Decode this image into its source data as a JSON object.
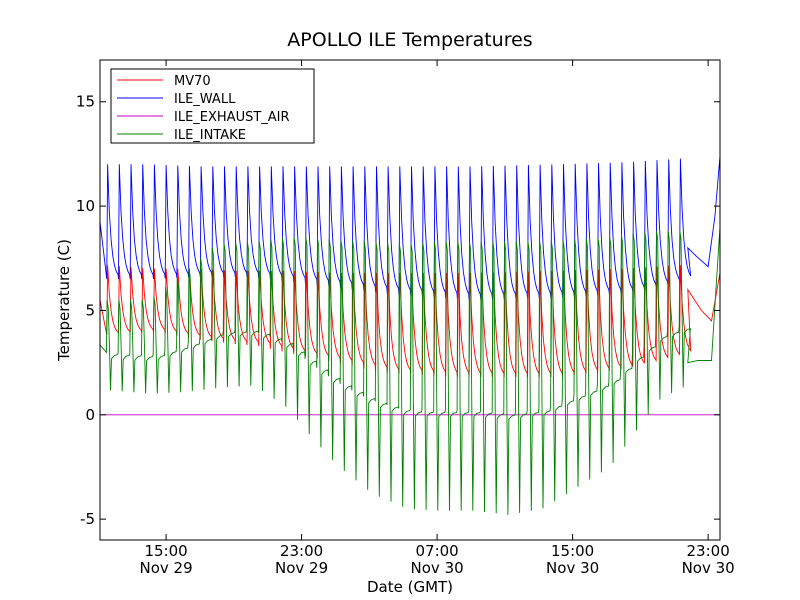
{
  "chart_data": {
    "type": "line",
    "title": "APOLLO ILE Temperatures",
    "xlabel": "Date (GMT)",
    "ylabel": "Temperature (C)",
    "ylim": [
      -6,
      17
    ],
    "xlim_hours": [
      11.1,
      47.7
    ],
    "grid": false,
    "legend_position": "top-left",
    "y_ticks": [
      {
        "value": -5,
        "label": "-5"
      },
      {
        "value": 0,
        "label": "0"
      },
      {
        "value": 5,
        "label": "5"
      },
      {
        "value": 10,
        "label": "10"
      },
      {
        "value": 15,
        "label": "15"
      }
    ],
    "x_ticks": [
      {
        "hours": 15,
        "time": "15:00",
        "date": "Nov 29"
      },
      {
        "hours": 23,
        "time": "23:00",
        "date": "Nov 29"
      },
      {
        "hours": 31,
        "time": "07:00",
        "date": "Nov 30"
      },
      {
        "hours": 39,
        "time": "15:00",
        "date": "Nov 30"
      },
      {
        "hours": 47,
        "time": "23:00",
        "date": "Nov 30"
      }
    ],
    "cycle": {
      "start_hour": 11.5,
      "period_hours": 0.69,
      "end_hour": 45.8
    },
    "series": [
      {
        "name": "MV70",
        "color": "#ff0000",
        "envelope": {
          "hours": [
            11.1,
            14.0,
            17.0,
            19.0,
            20.5,
            22.0,
            25.0,
            28.0,
            33.0,
            38.0,
            42.0,
            45.8
          ],
          "highs": [
            7.2,
            7.0,
            7.0,
            6.9,
            6.9,
            6.9,
            6.8,
            6.8,
            6.8,
            6.9,
            7.0,
            7.2
          ],
          "lows": [
            3.8,
            4.0,
            3.6,
            3.4,
            3.3,
            3.0,
            2.5,
            2.0,
            1.8,
            1.8,
            2.2,
            3.0
          ]
        },
        "tail": {
          "hours": [
            45.8,
            46.6,
            47.2,
            47.7
          ],
          "values": [
            6.0,
            5.0,
            4.5,
            6.8
          ]
        }
      },
      {
        "name": "ILE_WALL",
        "color": "#0000ff",
        "envelope": {
          "hours": [
            11.1,
            14.0,
            17.0,
            20.0,
            23.0,
            28.0,
            33.0,
            38.0,
            42.0,
            45.8
          ],
          "highs": [
            12.0,
            12.0,
            11.9,
            11.9,
            11.9,
            11.9,
            11.9,
            12.0,
            12.1,
            12.3
          ],
          "lows": [
            6.5,
            6.5,
            6.6,
            6.6,
            6.3,
            5.8,
            5.5,
            5.6,
            5.8,
            6.5
          ]
        },
        "tail": {
          "hours": [
            45.8,
            46.3,
            47.0,
            47.4,
            47.7
          ],
          "values": [
            8.0,
            7.6,
            7.1,
            9.5,
            12.4
          ]
        }
      },
      {
        "name": "ILE_EXHAUST_AIR",
        "color": "#bf00bf",
        "constant_value": 0
      },
      {
        "name": "ILE_INTAKE",
        "color": "#008000",
        "envelope": {
          "hours": [
            11.1,
            14.0,
            16.0,
            18.0,
            20.0,
            22.0,
            22.8,
            23.5,
            25.0,
            27.0,
            29.0,
            31.0,
            33.0,
            35.0,
            37.0,
            39.0,
            41.0,
            42.5,
            44.0,
            45.8
          ],
          "highs": [
            5.5,
            5.5,
            6.8,
            8.2,
            8.3,
            8.5,
            8.5,
            8.5,
            8.4,
            8.3,
            8.2,
            8.3,
            8.3,
            8.3,
            8.3,
            8.4,
            8.5,
            8.7,
            8.8,
            8.8
          ],
          "lows": [
            1.2,
            1.0,
            1.1,
            1.3,
            1.4,
            0.3,
            -0.5,
            -1.2,
            -2.5,
            -3.8,
            -4.5,
            -4.6,
            -4.6,
            -4.8,
            -4.5,
            -3.5,
            -2.5,
            -0.8,
            0.8,
            1.5
          ]
        },
        "tail": {
          "hours": [
            45.8,
            46.4,
            47.2,
            47.5,
            47.7
          ],
          "values": [
            2.5,
            2.6,
            2.6,
            6.5,
            9.0
          ]
        }
      }
    ]
  }
}
